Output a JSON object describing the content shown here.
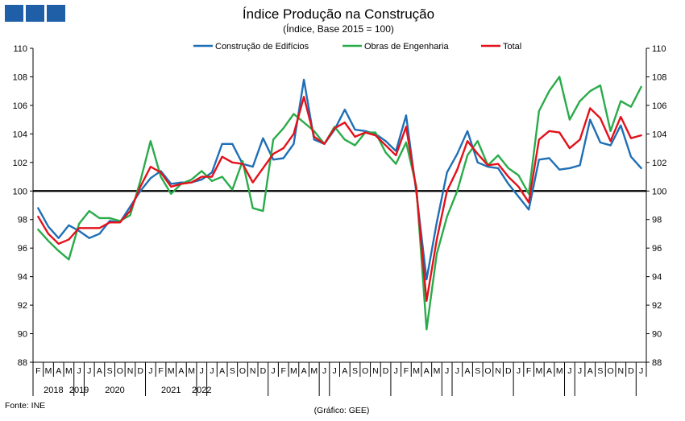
{
  "chart_data": {
    "type": "line",
    "title": "Índice Produção na Construção",
    "subtitle": "(Índice, Base 2015 = 100)",
    "source": "Fonte: INE",
    "credit": "(Gráfico: GEE)",
    "ylim": [
      88,
      110
    ],
    "yticks": [
      88,
      90,
      92,
      94,
      96,
      98,
      100,
      102,
      104,
      106,
      108,
      110
    ],
    "reference_line": 100,
    "months": [
      "F",
      "M",
      "A",
      "M",
      "J",
      "J",
      "A",
      "S",
      "O",
      "N",
      "D",
      "J",
      "F",
      "M",
      "A",
      "M",
      "J",
      "J",
      "A",
      "S",
      "O",
      "N",
      "D",
      "J",
      "F",
      "M",
      "A",
      "M",
      "J",
      "J",
      "A",
      "S",
      "O",
      "N",
      "D",
      "J",
      "F",
      "M",
      "A",
      "M",
      "J",
      "J",
      "A",
      "S",
      "O",
      "N",
      "D",
      "J",
      "F",
      "M",
      "A",
      "M",
      "J",
      "J",
      "A",
      "S",
      "O",
      "N",
      "D",
      "J"
    ],
    "years": [
      "2018",
      "2019",
      "2020",
      "2021",
      "2022"
    ],
    "series": [
      {
        "name": "Construção de Edifícios",
        "color": "#1f6fb5",
        "values": [
          98.8,
          97.5,
          96.7,
          97.6,
          97.2,
          96.7,
          97.0,
          97.9,
          97.8,
          98.9,
          100.0,
          100.9,
          101.4,
          100.5,
          100.6,
          100.6,
          100.8,
          101.3,
          103.3,
          103.3,
          101.9,
          101.7,
          103.7,
          102.2,
          102.3,
          103.3,
          107.8,
          103.6,
          103.3,
          104.3,
          105.7,
          104.3,
          104.2,
          104.0,
          103.5,
          102.8,
          105.3,
          99.9,
          93.8,
          97.8,
          101.3,
          102.6,
          104.2,
          102.0,
          101.7,
          101.6,
          100.5,
          99.6,
          98.7,
          102.2,
          102.3,
          101.5,
          101.6,
          101.8,
          105.0,
          103.4,
          103.2,
          104.6,
          102.4,
          101.6
        ]
      },
      {
        "name": "Obras de Engenharia",
        "color": "#2aab4a",
        "values": [
          97.3,
          96.5,
          95.8,
          95.2,
          97.7,
          98.6,
          98.1,
          98.1,
          97.9,
          98.3,
          100.7,
          103.5,
          101.0,
          99.8,
          100.5,
          100.8,
          101.4,
          100.7,
          101.0,
          100.1,
          102.1,
          98.8,
          98.6,
          103.6,
          104.4,
          105.4,
          104.8,
          104.2,
          103.3,
          104.5,
          103.6,
          103.2,
          104.1,
          104.1,
          102.7,
          101.9,
          103.4,
          100.3,
          90.3,
          95.6,
          98.2,
          100.0,
          102.5,
          103.5,
          101.8,
          102.5,
          101.6,
          101.1,
          99.8,
          105.6,
          107.0,
          108.0,
          105.0,
          106.3,
          107.0,
          107.4,
          104.2,
          106.3,
          105.9,
          107.3
        ]
      },
      {
        "name": "Total",
        "color": "#e3111b",
        "values": [
          98.2,
          97.0,
          96.3,
          96.6,
          97.4,
          97.4,
          97.4,
          97.8,
          97.8,
          98.6,
          100.3,
          101.7,
          101.3,
          100.3,
          100.5,
          100.6,
          101.0,
          101.0,
          102.4,
          102.0,
          101.9,
          100.6,
          101.6,
          102.6,
          103.0,
          104.0,
          106.6,
          103.8,
          103.3,
          104.4,
          104.8,
          103.8,
          104.1,
          103.9,
          103.2,
          102.5,
          104.5,
          100.1,
          92.3,
          96.6,
          100.0,
          101.5,
          103.5,
          102.6,
          101.8,
          101.9,
          101.0,
          100.3,
          99.2,
          103.6,
          104.2,
          104.1,
          103.0,
          103.6,
          105.8,
          105.1,
          103.5,
          105.2,
          103.7,
          103.9
        ]
      }
    ]
  }
}
